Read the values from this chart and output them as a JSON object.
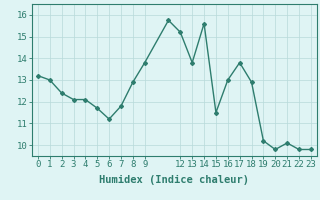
{
  "x": [
    0,
    1,
    2,
    3,
    4,
    5,
    6,
    7,
    8,
    9,
    11,
    12,
    13,
    14,
    15,
    16,
    17,
    18,
    19,
    20,
    21,
    22,
    23
  ],
  "y": [
    13.2,
    13.0,
    12.4,
    12.1,
    12.1,
    11.7,
    11.2,
    11.8,
    12.9,
    13.8,
    15.75,
    15.2,
    13.8,
    15.6,
    11.5,
    13.0,
    13.8,
    12.9,
    10.2,
    9.8,
    10.1,
    9.8,
    9.8
  ],
  "line_color": "#2e7d6e",
  "marker": "D",
  "marker_size": 2,
  "bg_color": "#dff4f4",
  "grid_color": "#b8dada",
  "xlabel": "Humidex (Indice chaleur)",
  "xlim": [
    -0.5,
    23.5
  ],
  "ylim": [
    9.5,
    16.5
  ],
  "xticks": [
    0,
    1,
    2,
    3,
    4,
    5,
    6,
    7,
    8,
    9,
    12,
    13,
    14,
    15,
    16,
    17,
    18,
    19,
    20,
    21,
    22,
    23
  ],
  "yticks": [
    10,
    11,
    12,
    13,
    14,
    15,
    16
  ],
  "xlabel_fontsize": 7.5,
  "tick_fontsize": 6.5,
  "line_width": 1.0
}
